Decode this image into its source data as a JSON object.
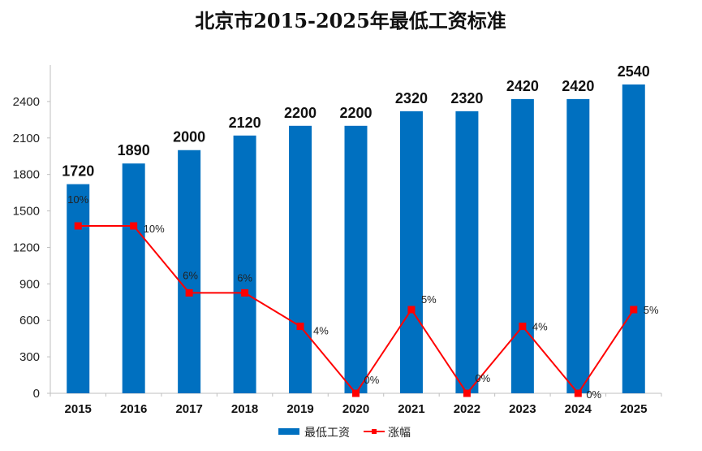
{
  "chart_data": {
    "type": "bar",
    "title": "北京市2015-2025年最低工资标准",
    "categories": [
      "2015",
      "2016",
      "2017",
      "2018",
      "2019",
      "2020",
      "2021",
      "2022",
      "2023",
      "2024",
      "2025"
    ],
    "series": [
      {
        "name": "最低工资",
        "type": "bar",
        "values": [
          1720,
          1890,
          2000,
          2120,
          2200,
          2200,
          2320,
          2320,
          2420,
          2420,
          2540
        ],
        "labels": [
          "1720",
          "1890",
          "2000",
          "2120",
          "2200",
          "2200",
          "2320",
          "2320",
          "2420",
          "2420",
          "2540"
        ],
        "color": "#0070C0"
      },
      {
        "name": "涨幅",
        "type": "line",
        "values": [
          10,
          10,
          6,
          6,
          4,
          0,
          5,
          0,
          4,
          0,
          5
        ],
        "unit": "%",
        "labels": [
          "10%",
          "10%",
          "6%",
          "6%",
          "4%",
          "0%",
          "5%",
          "0%",
          "4%",
          "0%",
          "5%"
        ],
        "color": "#FF0000",
        "marker": "square"
      }
    ],
    "y_axis": {
      "min": 0,
      "max": 2700,
      "ticks": [
        0,
        300,
        600,
        900,
        1200,
        1500,
        1800,
        2100,
        2400
      ],
      "tick_labels": [
        "0",
        "300",
        "600",
        "900",
        "1200",
        "1500",
        "1800",
        "2100",
        "2400"
      ]
    },
    "grid": false,
    "legend_position": "bottom"
  }
}
